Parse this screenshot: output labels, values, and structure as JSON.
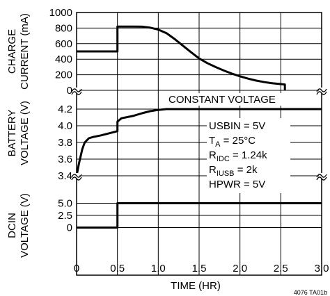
{
  "chart_data": {
    "type": "line",
    "x": {
      "label": "TIME (HR)",
      "range": [
        0,
        3.0
      ],
      "ticks": [
        0,
        0.5,
        1.0,
        1.5,
        2.0,
        2.5,
        3.0
      ],
      "tick_labels": [
        "0",
        "0.5",
        "1.0",
        "1.5",
        "2.0",
        "2.5",
        "3.0"
      ]
    },
    "panels": [
      {
        "id": "charge-current",
        "ylabel_lines": [
          "CHARGE",
          "CURRENT (mA)"
        ],
        "ylim": [
          0,
          1000
        ],
        "yticks": [
          0,
          200,
          400,
          600,
          800,
          1000
        ],
        "ytick_labels": [
          "0",
          "200",
          "400",
          "600",
          "800",
          "1000"
        ],
        "series": [
          {
            "points": [
              [
                0,
                500
              ],
              [
                0.5,
                500
              ],
              [
                0.5,
                820
              ],
              [
                0.6,
                820
              ],
              [
                0.7,
                820
              ],
              [
                0.8,
                818
              ],
              [
                0.9,
                805
              ],
              [
                1.0,
                780
              ],
              [
                1.1,
                735
              ],
              [
                1.2,
                660
              ],
              [
                1.3,
                575
              ],
              [
                1.4,
                490
              ],
              [
                1.5,
                410
              ],
              [
                1.6,
                350
              ],
              [
                1.7,
                300
              ],
              [
                1.8,
                255
              ],
              [
                1.9,
                215
              ],
              [
                2.0,
                180
              ],
              [
                2.1,
                150
              ],
              [
                2.2,
                125
              ],
              [
                2.3,
                105
              ],
              [
                2.4,
                90
              ],
              [
                2.5,
                80
              ],
              [
                2.55,
                75
              ],
              [
                2.55,
                0
              ]
            ]
          }
        ]
      },
      {
        "id": "battery-voltage",
        "ylabel_lines": [
          "BATTERY",
          "VOLTAGE (V)"
        ],
        "ylim": [
          3.4,
          4.2
        ],
        "yticks": [
          3.4,
          3.6,
          3.8,
          4.0,
          4.2
        ],
        "ytick_labels": [
          "3.4",
          "3.6",
          "3.8",
          "4.0",
          "4.2"
        ],
        "series": [
          {
            "points": [
              [
                0.0,
                3.4
              ],
              [
                0.03,
                3.55
              ],
              [
                0.07,
                3.72
              ],
              [
                0.1,
                3.8
              ],
              [
                0.15,
                3.85
              ],
              [
                0.2,
                3.865
              ],
              [
                0.3,
                3.885
              ],
              [
                0.4,
                3.91
              ],
              [
                0.5,
                3.935
              ],
              [
                0.5,
                4.05
              ],
              [
                0.55,
                4.09
              ],
              [
                0.7,
                4.12
              ],
              [
                0.8,
                4.15
              ],
              [
                0.9,
                4.175
              ],
              [
                1.0,
                4.19
              ],
              [
                1.1,
                4.2
              ],
              [
                1.2,
                4.2
              ],
              [
                3.0,
                4.2
              ]
            ]
          }
        ]
      },
      {
        "id": "dcin-voltage",
        "ylabel_lines": [
          "DCIN",
          "VOLTAGE (V)"
        ],
        "ylim": [
          -1.5,
          6.5
        ],
        "yticks": [
          0,
          2.5,
          5.0
        ],
        "ytick_labels": [
          "0",
          "2.5",
          "5.0"
        ],
        "series": [
          {
            "points": [
              [
                0,
                0
              ],
              [
                0.5,
                0
              ],
              [
                0.5,
                5.0
              ],
              [
                3.0,
                5.0
              ]
            ]
          }
        ]
      }
    ],
    "annotations": {
      "constant_voltage": "CONSTANT VOLTAGE",
      "conditions": [
        {
          "main": "USBIN = 5V",
          "sub": "",
          "rest": ""
        },
        {
          "main": "T",
          "sub": "A",
          "rest": " = 25°C"
        },
        {
          "main": "R",
          "sub": "IDC",
          "rest": " = 1.24k"
        },
        {
          "main": "R",
          "sub": "IUSB",
          "rest": " = 2k"
        },
        {
          "main": "HPWR = 5V",
          "sub": "",
          "rest": ""
        }
      ],
      "figure_id": "4076 TA01b"
    },
    "grid": true,
    "axis_breaks": "between-panels"
  }
}
